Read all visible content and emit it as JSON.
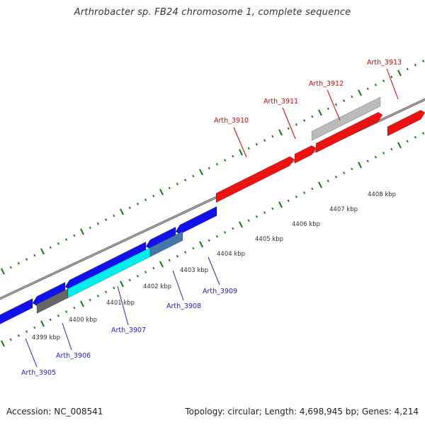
{
  "title": "Arthrobacter sp. FB24 chromosome 1, complete sequence",
  "footer": {
    "accession": "Accession: NC_008541",
    "summary": "Topology: circular; Length: 4,698,945 bp; Genes: 4,214"
  },
  "colors": {
    "forward": "#ee1111",
    "reverse": "#1111ee",
    "backbone": "#888888",
    "tick": "#117711",
    "forward_label": "#dd0000",
    "reverse_label": "#2222cc"
  },
  "scale_labels": [
    "4399 kbp",
    "4400 kbp",
    "4401 kbp",
    "4402 kbp",
    "4403 kbp",
    "4404 kbp",
    "4405 kbp",
    "4406 kbp",
    "4407 kbp",
    "4408 kbp"
  ],
  "genes": [
    {
      "label": "Arth_3905",
      "strand": "reverse",
      "color": "#1111ee"
    },
    {
      "label": "Arth_3906",
      "strand": "reverse",
      "color": "#666666"
    },
    {
      "label": "Arth_3907",
      "strand": "reverse",
      "color": "#00eeee"
    },
    {
      "label": "Arth_3908",
      "strand": "reverse",
      "color": "#4477aa"
    },
    {
      "label": "Arth_3909",
      "strand": "reverse",
      "color": "#1111ee"
    },
    {
      "label": "Arth_3910",
      "strand": "forward",
      "color": "#ee1111"
    },
    {
      "label": "Arth_3911",
      "strand": "forward",
      "color": "#ee1111"
    },
    {
      "label": "Arth_3912",
      "strand": "forward",
      "color": "#bbbbbb"
    },
    {
      "label": "Arth_3913",
      "strand": "forward",
      "color": "#ee1111"
    }
  ]
}
